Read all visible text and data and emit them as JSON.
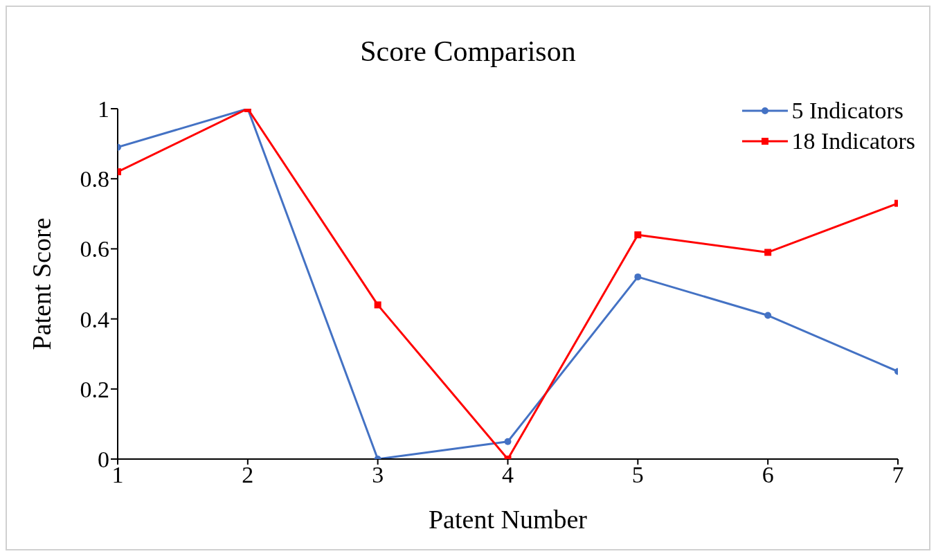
{
  "chart_data": {
    "type": "line",
    "title": "Score Comparison",
    "xlabel": "Patent Number",
    "ylabel": "Patent Score",
    "categories": [
      "1",
      "2",
      "3",
      "4",
      "5",
      "6",
      "7"
    ],
    "series": [
      {
        "name": "5 Indicators",
        "color": "#4472c4",
        "marker": "circle",
        "values": [
          0.89,
          1,
          0,
          0.05,
          0.52,
          0.41,
          0.25
        ]
      },
      {
        "name": "18 Indicators",
        "color": "#ff0000",
        "marker": "square",
        "values": [
          0.82,
          1,
          0.44,
          0,
          0.64,
          0.59,
          0.73
        ]
      }
    ],
    "ylim": [
      0,
      1
    ],
    "yticks": [
      0,
      0.2,
      0.4,
      0.6,
      0.8,
      1
    ],
    "grid": false,
    "legend": "top right",
    "line_style": "solid"
  }
}
